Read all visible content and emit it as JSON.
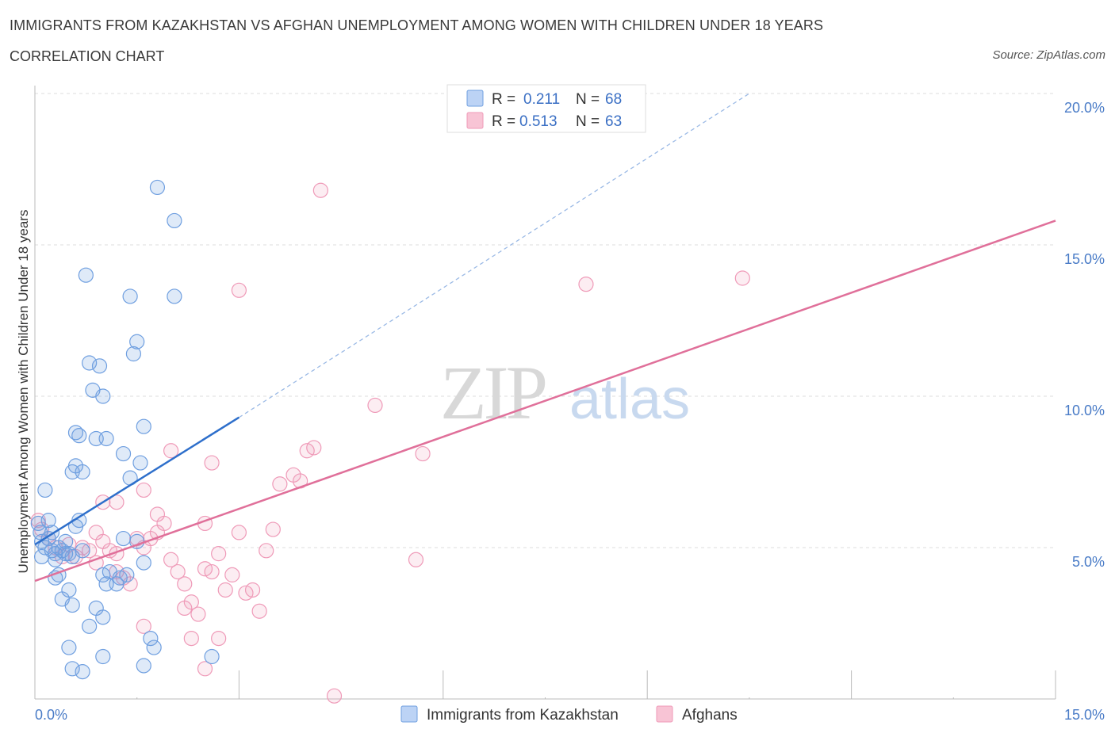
{
  "title": "IMMIGRANTS FROM KAZAKHSTAN VS AFGHAN UNEMPLOYMENT AMONG WOMEN WITH CHILDREN UNDER 18 YEARS",
  "subtitle": "CORRELATION CHART",
  "source": "Source: ZipAtlas.com",
  "watermark": {
    "zip": "ZIP",
    "atlas": "atlas"
  },
  "legend": {
    "series1": {
      "r_label": "R =",
      "r_value": "0.211",
      "n_label": "N =",
      "n_value": "68"
    },
    "series2": {
      "r_label": "R =",
      "r_value": "0.513",
      "n_label": "N =",
      "n_value": "63"
    }
  },
  "colors": {
    "blue": "#6f9fe0",
    "pink": "#ef9ab8",
    "blue_line": "#2e6fcb",
    "pink_line": "#e0709a"
  },
  "chart_data": {
    "type": "scatter",
    "ylabel": "Unemployment Among Women with Children Under 18 years",
    "xlabel": "",
    "xlim": [
      0,
      15
    ],
    "ylim": [
      0,
      20
    ],
    "x_ticks": [
      "0.0%",
      "15.0%"
    ],
    "y_ticks": [
      {
        "value": 5,
        "label": "5.0%"
      },
      {
        "value": 10,
        "label": "10.0%"
      },
      {
        "value": 15,
        "label": "15.0%"
      },
      {
        "value": 20,
        "label": "20.0%"
      }
    ],
    "grid": true,
    "legend_position": "top-center",
    "series": [
      {
        "name": "Immigrants from Kazakhstan",
        "color": "#6f9fe0",
        "trend": {
          "x": [
            0,
            3
          ],
          "y": [
            5.1,
            9.3
          ],
          "dashed_extension": {
            "x": [
              3,
              10.5
            ],
            "y": [
              9.3,
              20
            ]
          }
        },
        "points": [
          [
            0.05,
            5.8
          ],
          [
            0.08,
            5.5
          ],
          [
            0.1,
            5.2
          ],
          [
            0.15,
            5.0
          ],
          [
            0.2,
            5.3
          ],
          [
            0.25,
            4.9
          ],
          [
            0.1,
            4.7
          ],
          [
            0.3,
            4.8
          ],
          [
            0.35,
            5.0
          ],
          [
            0.4,
            4.9
          ],
          [
            0.45,
            4.8
          ],
          [
            0.5,
            4.8
          ],
          [
            0.6,
            5.7
          ],
          [
            0.15,
            6.9
          ],
          [
            0.2,
            5.9
          ],
          [
            0.3,
            4.0
          ],
          [
            0.35,
            4.1
          ],
          [
            0.4,
            3.3
          ],
          [
            0.5,
            3.6
          ],
          [
            0.55,
            3.1
          ],
          [
            0.65,
            5.9
          ],
          [
            0.7,
            7.5
          ],
          [
            0.8,
            11.1
          ],
          [
            0.95,
            11.0
          ],
          [
            0.85,
            10.2
          ],
          [
            0.9,
            8.6
          ],
          [
            1.0,
            10.0
          ],
          [
            1.05,
            8.6
          ],
          [
            0.6,
            8.8
          ],
          [
            0.55,
            7.5
          ],
          [
            0.65,
            8.7
          ],
          [
            0.6,
            7.7
          ],
          [
            1.0,
            4.1
          ],
          [
            1.05,
            3.8
          ],
          [
            1.1,
            4.2
          ],
          [
            1.2,
            3.8
          ],
          [
            1.25,
            4.0
          ],
          [
            1.3,
            5.3
          ],
          [
            1.35,
            4.1
          ],
          [
            0.9,
            3.0
          ],
          [
            1.0,
            2.7
          ],
          [
            0.8,
            2.4
          ],
          [
            0.5,
            1.7
          ],
          [
            0.55,
            1.0
          ],
          [
            0.7,
            0.9
          ],
          [
            1.0,
            1.4
          ],
          [
            1.6,
            1.1
          ],
          [
            1.7,
            2.0
          ],
          [
            1.75,
            1.7
          ],
          [
            2.6,
            1.4
          ],
          [
            1.4,
            13.3
          ],
          [
            1.5,
            11.8
          ],
          [
            1.45,
            11.4
          ],
          [
            1.8,
            16.9
          ],
          [
            2.05,
            15.8
          ],
          [
            2.05,
            13.3
          ],
          [
            0.75,
            14.0
          ],
          [
            1.55,
            7.8
          ],
          [
            1.6,
            9.0
          ],
          [
            1.4,
            7.3
          ],
          [
            1.3,
            8.1
          ],
          [
            1.5,
            5.2
          ],
          [
            1.6,
            4.5
          ],
          [
            0.25,
            5.5
          ],
          [
            0.45,
            5.2
          ],
          [
            0.7,
            4.9
          ],
          [
            0.3,
            4.6
          ],
          [
            0.55,
            4.7
          ]
        ]
      },
      {
        "name": "Afghans",
        "color": "#ef9ab8",
        "trend": {
          "x": [
            0,
            15
          ],
          "y": [
            3.9,
            15.8
          ]
        },
        "points": [
          [
            0.05,
            5.9
          ],
          [
            0.1,
            5.6
          ],
          [
            0.2,
            5.3
          ],
          [
            0.3,
            5.0
          ],
          [
            0.5,
            5.1
          ],
          [
            0.6,
            4.7
          ],
          [
            0.7,
            5.0
          ],
          [
            0.8,
            4.9
          ],
          [
            0.9,
            4.5
          ],
          [
            1.0,
            5.2
          ],
          [
            1.1,
            4.9
          ],
          [
            1.2,
            4.2
          ],
          [
            1.3,
            4.0
          ],
          [
            1.4,
            3.8
          ],
          [
            1.5,
            5.3
          ],
          [
            1.6,
            5.0
          ],
          [
            1.7,
            5.3
          ],
          [
            1.8,
            5.5
          ],
          [
            1.9,
            5.8
          ],
          [
            2.0,
            4.6
          ],
          [
            2.1,
            4.2
          ],
          [
            2.2,
            3.8
          ],
          [
            2.3,
            3.2
          ],
          [
            2.4,
            2.8
          ],
          [
            2.5,
            5.8
          ],
          [
            2.6,
            4.2
          ],
          [
            2.7,
            4.8
          ],
          [
            2.8,
            3.6
          ],
          [
            2.9,
            4.1
          ],
          [
            3.0,
            5.5
          ],
          [
            3.1,
            3.5
          ],
          [
            3.2,
            3.6
          ],
          [
            3.3,
            2.9
          ],
          [
            3.4,
            4.9
          ],
          [
            3.5,
            5.6
          ],
          [
            3.6,
            7.1
          ],
          [
            3.8,
            7.4
          ],
          [
            3.9,
            7.2
          ],
          [
            4.0,
            8.2
          ],
          [
            4.1,
            8.3
          ],
          [
            2.0,
            8.2
          ],
          [
            2.6,
            7.8
          ],
          [
            1.6,
            6.9
          ],
          [
            1.0,
            6.5
          ],
          [
            1.2,
            6.5
          ],
          [
            0.9,
            5.5
          ],
          [
            1.8,
            6.1
          ],
          [
            2.5,
            4.3
          ],
          [
            2.2,
            3.0
          ],
          [
            1.6,
            2.4
          ],
          [
            2.3,
            2.0
          ],
          [
            2.5,
            1.0
          ],
          [
            2.7,
            2.0
          ],
          [
            3.0,
            13.5
          ],
          [
            4.2,
            16.8
          ],
          [
            5.0,
            9.7
          ],
          [
            5.7,
            8.1
          ],
          [
            5.6,
            4.6
          ],
          [
            8.1,
            13.7
          ],
          [
            10.4,
            13.9
          ],
          [
            4.4,
            0.1
          ],
          [
            1.2,
            4.8
          ],
          [
            0.4,
            4.7
          ]
        ]
      }
    ]
  },
  "bottom_legend": {
    "series1": "Immigrants from Kazakhstan",
    "series2": "Afghans"
  }
}
